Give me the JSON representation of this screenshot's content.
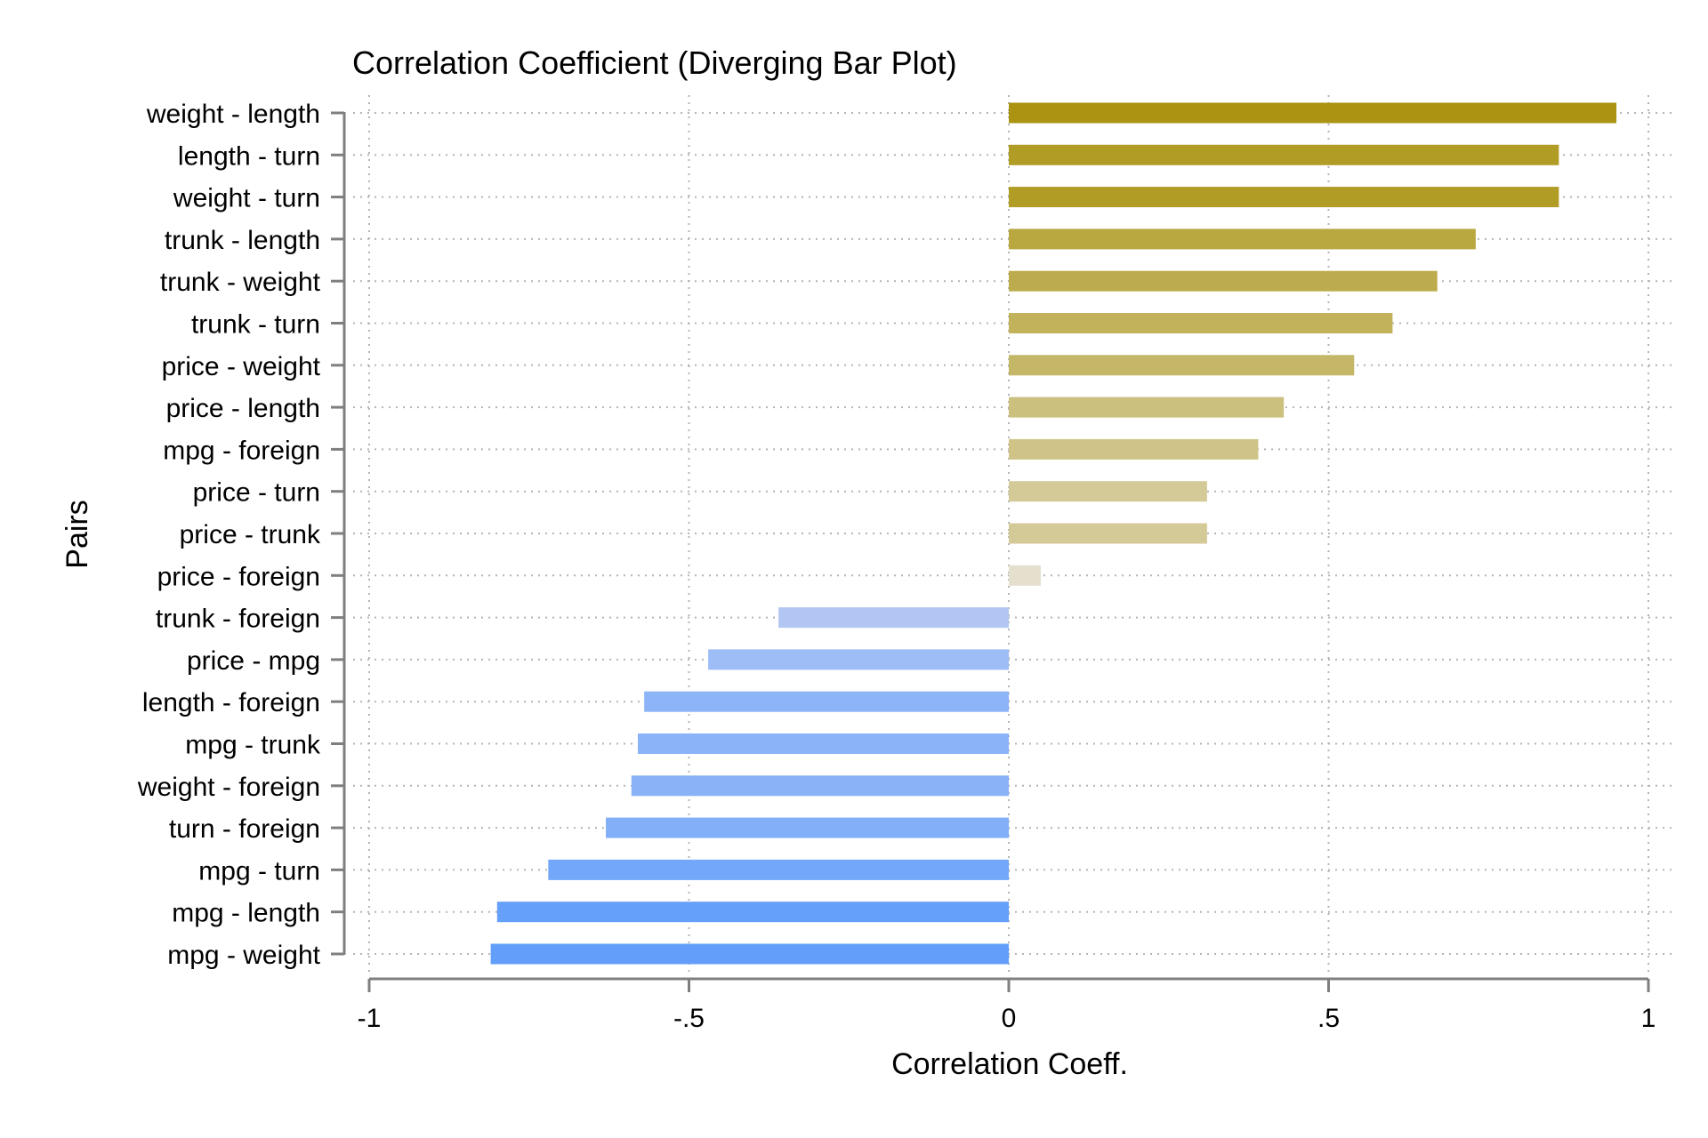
{
  "chart_data": {
    "type": "bar",
    "orientation": "horizontal",
    "title": "Correlation Coefficient (Diverging Bar Plot)",
    "xlabel": "Correlation Coeff.",
    "ylabel": "Pairs",
    "xlim": [
      -1,
      1
    ],
    "xticks": [
      -1,
      -0.5,
      0,
      0.5,
      1
    ],
    "xtick_labels": [
      "-1",
      "-.5",
      "0",
      ".5",
      "1"
    ],
    "grid": true,
    "legend": "none",
    "categories": [
      "weight - length",
      "length - turn",
      "weight - turn",
      "trunk - length",
      "trunk - weight",
      "trunk - turn",
      "price - weight",
      "price - length",
      "mpg - foreign",
      "price - turn",
      "price - trunk",
      "price - foreign",
      "trunk - foreign",
      "price - mpg",
      "length - foreign",
      "mpg - trunk",
      "weight - foreign",
      "turn - foreign",
      "mpg - turn",
      "mpg - length",
      "mpg - weight"
    ],
    "values": [
      0.95,
      0.86,
      0.86,
      0.73,
      0.67,
      0.6,
      0.54,
      0.43,
      0.39,
      0.31,
      0.31,
      0.05,
      -0.36,
      -0.47,
      -0.57,
      -0.58,
      -0.59,
      -0.63,
      -0.72,
      -0.8,
      -0.81
    ],
    "colors": {
      "positive_strong": "#a89008",
      "positive_weak": "#e8e4d8",
      "negative_weak": "#bccbf3",
      "negative_strong": "#5c9cfb",
      "axis": "#7f7f7f",
      "grid": "#b4b4b4"
    }
  }
}
